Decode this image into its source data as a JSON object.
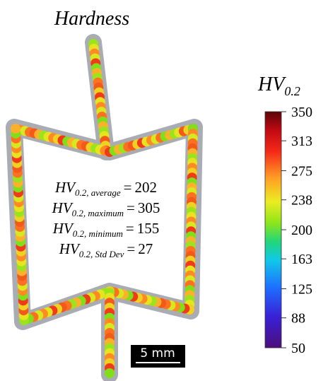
{
  "title": "Hardness",
  "colorbar": {
    "label": "HV",
    "label_sub": "0.2",
    "min": 50,
    "max": 350,
    "ticks": [
      50,
      88,
      125,
      163,
      200,
      238,
      275,
      313,
      350
    ]
  },
  "stats": [
    {
      "symbol": "HV",
      "subscript": "0.2, average",
      "relation": "=",
      "value": 202
    },
    {
      "symbol": "HV",
      "subscript": "0.2, maximum",
      "relation": "=",
      "value": 305
    },
    {
      "symbol": "HV",
      "subscript": "0.2, minimum",
      "relation": "=",
      "value": 155
    },
    {
      "symbol": "HV",
      "subscript": "0.2, Std Dev",
      "relation": "=",
      "value": 27
    }
  ],
  "scale_bar": "5 mm"
}
